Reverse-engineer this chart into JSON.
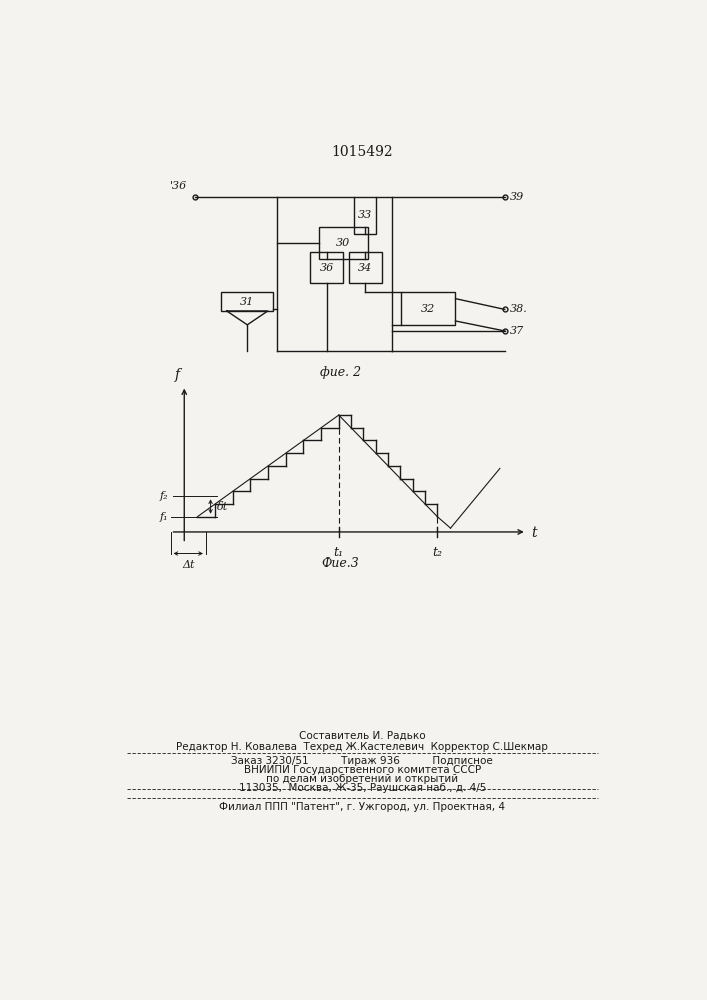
{
  "title": "1015492",
  "bg_color": "#f5f3f0",
  "fig2_label": "фие. 2",
  "fig3_label": "Фие.3",
  "line_color": "#1a1a1a"
}
